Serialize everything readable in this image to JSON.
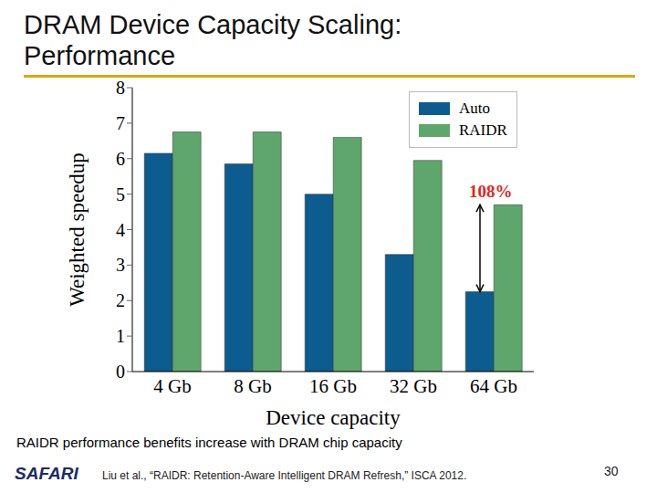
{
  "chart_data": {
    "type": "bar",
    "categories": [
      "4 Gb",
      "8 Gb",
      "16 Gb",
      "32 Gb",
      "64 Gb"
    ],
    "series": [
      {
        "name": "Auto",
        "color": "#0d5c8f",
        "values": [
          6.15,
          5.85,
          5.0,
          3.3,
          2.25
        ]
      },
      {
        "name": "RAIDR",
        "color": "#5ea66b",
        "values": [
          6.75,
          6.75,
          6.6,
          5.95,
          4.7
        ]
      }
    ],
    "x_label": "Device capacity",
    "y_label": "Weighted speedup",
    "ylim": [
      0,
      8
    ],
    "yticks": [
      0,
      1,
      2,
      3,
      4,
      5,
      6,
      7,
      8
    ],
    "grid": false,
    "legend": "upper right",
    "annotations": [
      {
        "text": "108%",
        "x": "64 Gb"
      }
    ]
  },
  "slide": {
    "title": "DRAM Device Capacity Scaling: Performance",
    "caption": "RAIDR performance benefits increase with DRAM chip capacity",
    "footer": {
      "logo": "SAFARI",
      "citation": "Liu et al., “RAIDR: Retention-Aware Intelligent DRAM Refresh,” ISCA 2012.",
      "page": 30
    }
  }
}
